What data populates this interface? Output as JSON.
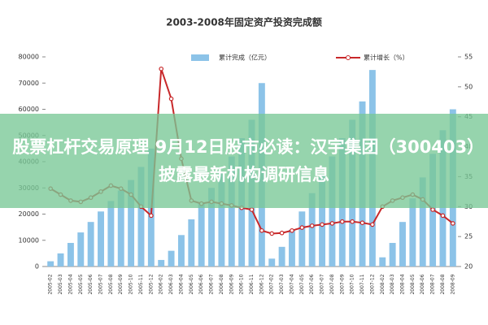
{
  "chart_data": {
    "type": "bar",
    "title": "2003-2008年固定资产投资完成额",
    "categories": [
      "2005-02",
      "2005-03",
      "2005-04",
      "2005-05",
      "2005-06",
      "2005-07",
      "2005-08",
      "2005-09",
      "2005-10",
      "2005-11",
      "2005-12",
      "2006-02",
      "2006-03",
      "2006-04",
      "2006-05",
      "2006-06",
      "2006-07",
      "2006-08",
      "2006-09",
      "2006-10",
      "2006-11",
      "2006-12",
      "2007-02",
      "2007-03",
      "2007-04",
      "2007-05",
      "2007-06",
      "2007-07",
      "2007-08",
      "2007-09",
      "2007-10",
      "2007-11",
      "2007-12",
      "2008-02",
      "2008-03",
      "2008-04",
      "2008-05",
      "2008-06",
      "2008-07",
      "2008-08",
      "2008-09"
    ],
    "series": [
      {
        "name": "累计完成（亿元）",
        "color": "#8cc3e8",
        "values": [
          2000,
          5000,
          9000,
          13000,
          17000,
          21000,
          25000,
          29000,
          33000,
          38000,
          45000,
          2500,
          6000,
          12000,
          18000,
          24000,
          30000,
          36000,
          42000,
          49000,
          56000,
          70000,
          3000,
          7500,
          14000,
          21000,
          28000,
          35000,
          42000,
          49000,
          56000,
          63000,
          75000,
          3500,
          9000,
          17000,
          26000,
          34000,
          43000,
          52000,
          60000
        ]
      },
      {
        "name": "累计增长（%）",
        "color": "#c8282a",
        "type": "line",
        "axis": "y2",
        "values": [
          33,
          32,
          31,
          30.8,
          31.5,
          32.5,
          33.5,
          33,
          32,
          30,
          28.5,
          53,
          48,
          38,
          31,
          30.5,
          30.8,
          30.5,
          30.2,
          29.8,
          29.5,
          26,
          25.5,
          25.6,
          26,
          26.5,
          26.8,
          27,
          27.2,
          27.5,
          27.5,
          27.3,
          27,
          30,
          31,
          31.5,
          32,
          31.2,
          29.5,
          28.5,
          27.2
        ]
      }
    ],
    "ylim": [
      0,
      80000
    ],
    "yticks": [
      0,
      10000,
      20000,
      30000,
      40000,
      50000,
      60000,
      70000,
      80000
    ],
    "y2lim": [
      20,
      55
    ],
    "y2ticks": [
      20,
      25,
      30,
      35,
      40,
      45,
      50,
      55
    ]
  },
  "banner": {
    "text": "股票杠杆交易原理 9月12日股市必读：汉宇集团（300403）披露最新机构调研信息"
  }
}
